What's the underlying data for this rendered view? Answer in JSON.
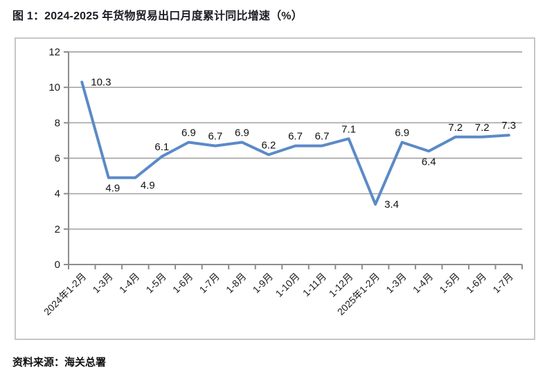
{
  "figure": {
    "title": "图 1：2024-2025 年货物贸易出口月度累计同比增速（%）",
    "source": "资料来源：海关总署"
  },
  "chart_data": {
    "type": "line",
    "title": "图 1：2024-2025 年货物贸易出口月度累计同比增速（%）",
    "categories": [
      "2024年1-2月",
      "1-3月",
      "1-4月",
      "1-5月",
      "1-6月",
      "1-7月",
      "1-8月",
      "1-9月",
      "1-10月",
      "1-11月",
      "1-12月",
      "2025年1-2月",
      "1-3月",
      "1-4月",
      "1-5月",
      "1-6月",
      "1-7月"
    ],
    "values": [
      10.3,
      4.9,
      4.9,
      6.1,
      6.9,
      6.7,
      6.9,
      6.2,
      6.7,
      6.7,
      7.1,
      3.4,
      6.9,
      6.4,
      7.2,
      7.2,
      7.3
    ],
    "data_labels": [
      "10.3",
      "4.9",
      "4.9",
      "6.1",
      "6.9",
      "6.7",
      "6.9",
      "6.2",
      "6.7",
      "6.7",
      "7.1",
      "3.4",
      "6.9",
      "6.4",
      "7.2",
      "7.2",
      "7.3"
    ],
    "label_positions": [
      "right",
      "below",
      "below-right",
      "above",
      "above",
      "above",
      "above",
      "above",
      "above",
      "above",
      "above",
      "right",
      "above",
      "below-center",
      "above",
      "above",
      "above"
    ],
    "xlabel": "",
    "ylabel": "",
    "ylim": [
      0,
      12
    ],
    "ytick_step": 2,
    "ytick_labels": [
      "0",
      "2",
      "4",
      "6",
      "8",
      "10",
      "12"
    ],
    "grid": "horizontal",
    "legend": "none",
    "line_color": "#5b8ac7",
    "gridline_color": "#a6a6a6",
    "axis_color": "#8c8c8c",
    "border_color": "#c6c6c6"
  }
}
